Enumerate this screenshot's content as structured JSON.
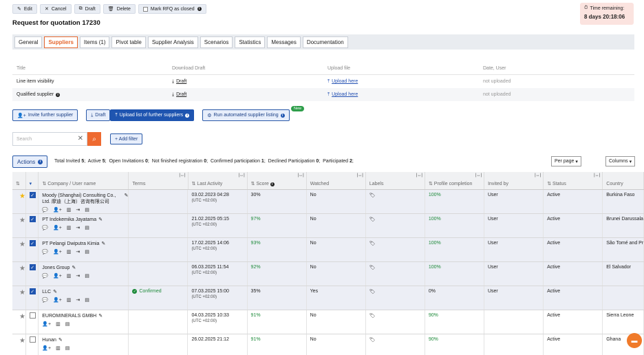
{
  "toolbar": {
    "edit": "Edit",
    "cancel": "Cancel",
    "draft": "Draft",
    "delete": "Delete",
    "mark_closed": "Mark RFQ as closed"
  },
  "title": "Request for quotation 17230",
  "timer": {
    "label": "Time remaining:",
    "value": "8 days 20:18:06"
  },
  "tabs": [
    "General",
    "Suppliers",
    "Items (1)",
    "Pivot table",
    "Supplier Analysis",
    "Scenarios",
    "Statistics",
    "Messages",
    "Documentation"
  ],
  "active_tab": "Suppliers",
  "files": {
    "headers": [
      "Title",
      "Download Draft",
      "Upload file",
      "Date, User"
    ],
    "rows": [
      {
        "title": "Line item visibility",
        "download": "Draft",
        "upload": "Upload here",
        "date": "not uploaded"
      },
      {
        "title": "Qualified supplier",
        "download": "Draft",
        "upload": "Upload here",
        "date": "not uploaded"
      }
    ]
  },
  "buttons": {
    "invite": "Invite further supplier",
    "draft": "Draft",
    "upload_list": "Upload list of further suppliers",
    "run_auto": "Run automated supplier listing",
    "new_badge": "New"
  },
  "search": {
    "placeholder": "Search"
  },
  "add_filter": "+ Add filter",
  "actions_label": "Actions",
  "stats": {
    "total_invited_label": "Total Invited",
    "total_invited": "5",
    "active_label": "Active",
    "active": "5",
    "open_inv_label": "Open Invitations",
    "open_inv": "0",
    "not_finished_label": "Not finished registration",
    "not_finished": "0",
    "confirmed_label": "Confirmed participation",
    "confirmed": "1",
    "declined_label": "Declined Participation",
    "declined": "0",
    "participated_label": "Participated",
    "participated": "2"
  },
  "per_page": "Per page",
  "columns_btn": "Columns",
  "grid": {
    "headers": {
      "company": "Company / User name",
      "terms": "Terms",
      "last_activity": "Last Activity",
      "score": "Score",
      "watched": "Watched",
      "labels": "Labels",
      "profile": "Profile completion",
      "invited_by": "Invited by",
      "status": "Status",
      "country": "Country"
    },
    "rows": [
      {
        "star": true,
        "checked": true,
        "company": "Moody (Shanghai) Consulting Co., Ltd. 摩迪（上海）咨询有限公司",
        "terms": "",
        "date": "03.02.2023 04:28",
        "tz": "(UTC +02:00)",
        "score": "30%",
        "score_green": false,
        "watched": "No",
        "profile": "100%",
        "profile_green": true,
        "invited": "User",
        "status": "Active",
        "country": "Burkina Faso"
      },
      {
        "star": false,
        "checked": true,
        "company": "PT Indokemika Jayatama",
        "terms": "",
        "date": "21.02.2025 05:15",
        "tz": "(UTC +02:00)",
        "score": "97%",
        "score_green": true,
        "watched": "No",
        "profile": "100%",
        "profile_green": true,
        "invited": "User",
        "status": "Active",
        "country": "Brunei Darussalam"
      },
      {
        "star": false,
        "checked": true,
        "company": "PT Pelangi Dwiputra Kimia",
        "terms": "",
        "date": "17.02.2025 14:06",
        "tz": "(UTC +02:00)",
        "score": "93%",
        "score_green": true,
        "watched": "No",
        "profile": "100%",
        "profile_green": true,
        "invited": "User",
        "status": "Active",
        "country": "São Tomé and Principe"
      },
      {
        "star": false,
        "checked": true,
        "company": "Jones Group",
        "terms": "",
        "date": "06.03.2025 11:54",
        "tz": "(UTC +02:00)",
        "score": "92%",
        "score_green": true,
        "watched": "No",
        "profile": "100%",
        "profile_green": true,
        "invited": "User",
        "status": "Active",
        "country": "El Salvador"
      },
      {
        "star": false,
        "checked": true,
        "company": "LLC",
        "terms": "Confirmed",
        "date": "07.03.2025 15:00",
        "tz": "(UTC +02:00)",
        "score": "35%",
        "score_green": false,
        "watched": "Yes",
        "profile": "0%",
        "profile_green": false,
        "invited": "User",
        "status": "Active",
        "country": ""
      },
      {
        "star": false,
        "checked": false,
        "company": "EUROMINERALS GMBH",
        "terms": "",
        "date": "04.03.2025 10:33",
        "tz": "(UTC +02:00)",
        "score": "91%",
        "score_green": true,
        "watched": "No",
        "profile": "90%",
        "profile_green": true,
        "invited": "",
        "status": "Active",
        "country": "Sierra Leone"
      },
      {
        "star": false,
        "checked": false,
        "company": "Hunan",
        "terms": "",
        "date": "26.02.2025 21:12",
        "tz": "",
        "score": "91%",
        "score_green": true,
        "watched": "No",
        "profile": "90%",
        "profile_green": true,
        "invited": "",
        "status": "Active",
        "country": "Ghana"
      }
    ]
  },
  "colors": {
    "accent": "#e5662e",
    "primary": "#1f55b0",
    "green": "#1e8a3a"
  }
}
